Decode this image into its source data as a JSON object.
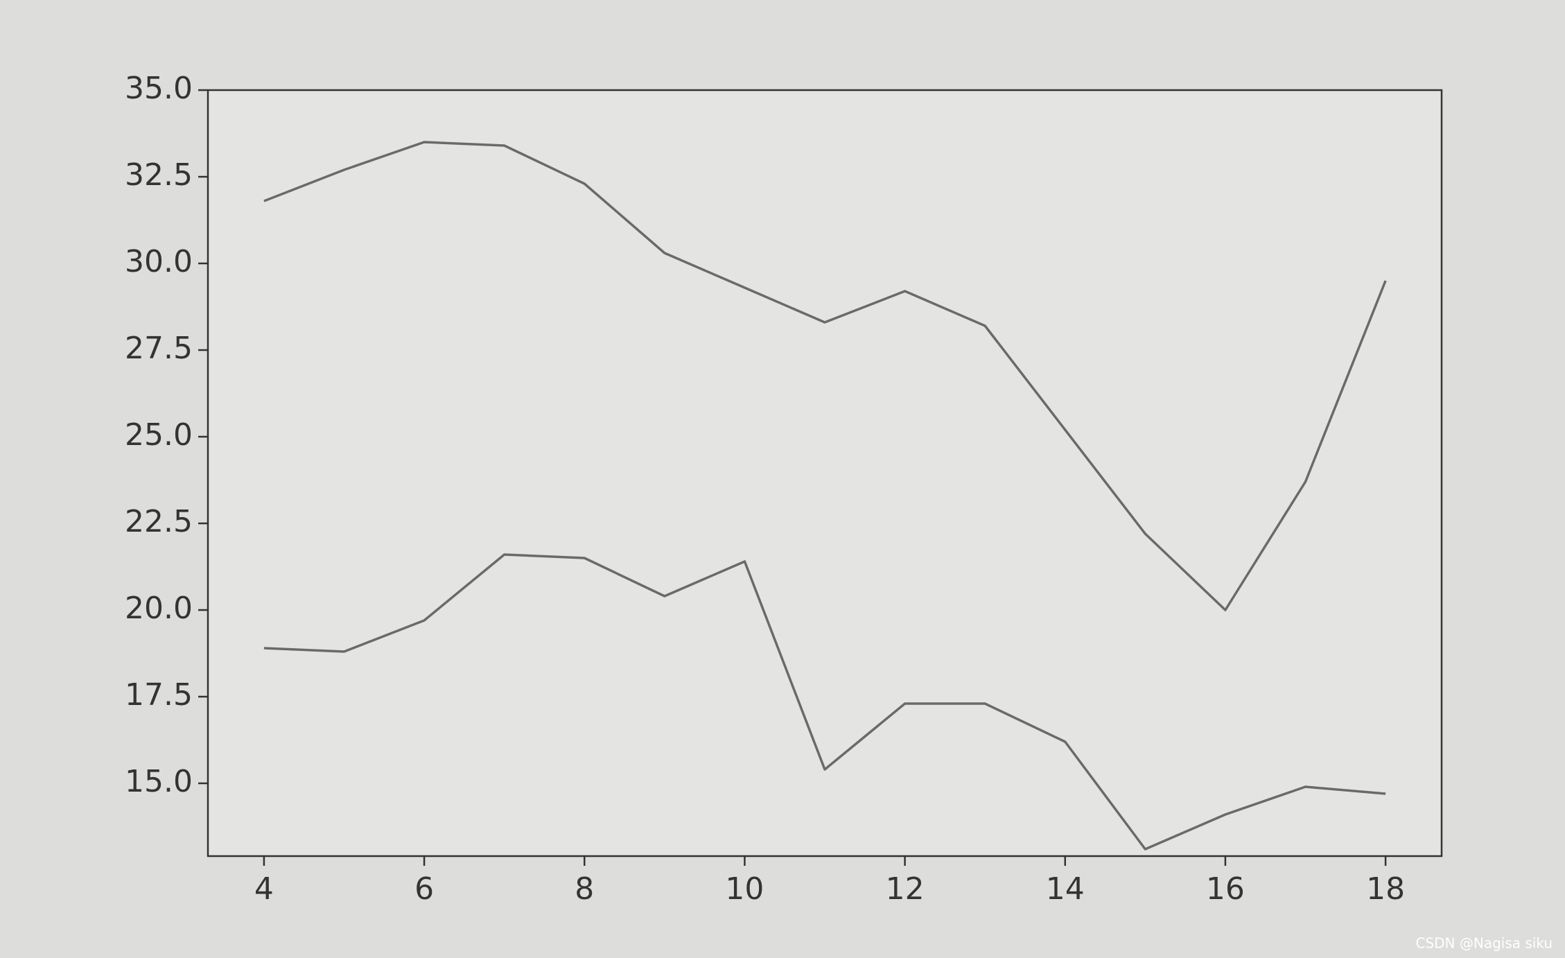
{
  "chart_data": {
    "type": "line",
    "x": [
      4,
      5,
      6,
      7,
      8,
      9,
      10,
      11,
      12,
      13,
      14,
      15,
      16,
      17,
      18
    ],
    "series": [
      {
        "color": "#6a6a6a",
        "values": [
          31.8,
          32.7,
          33.5,
          33.4,
          32.3,
          30.3,
          29.3,
          28.3,
          29.2,
          28.2,
          25.2,
          22.2,
          20.0,
          23.7,
          29.5
        ]
      },
      {
        "color": "#6a6a6a",
        "values": [
          18.9,
          18.8,
          19.7,
          21.6,
          21.5,
          20.4,
          21.4,
          15.4,
          17.3,
          17.3,
          16.2,
          13.1,
          14.1,
          14.9,
          14.7
        ]
      }
    ],
    "xlim": [
      3.3,
      18.7
    ],
    "ylim": [
      12.9,
      35.0
    ],
    "xticks": [
      4,
      6,
      8,
      10,
      12,
      14,
      16,
      18
    ],
    "yticks": [
      {
        "value": 15,
        "label": "15.0"
      },
      17.5,
      {
        "value": 20,
        "label": "20.0"
      },
      22.5,
      {
        "value": 25,
        "label": "25.0"
      },
      27.5,
      {
        "value": 30,
        "label": "30.0"
      },
      32.5,
      {
        "value": 35,
        "label": "35.0"
      }
    ],
    "grid": false
  },
  "watermark": "CSDN @Nagisa siku"
}
